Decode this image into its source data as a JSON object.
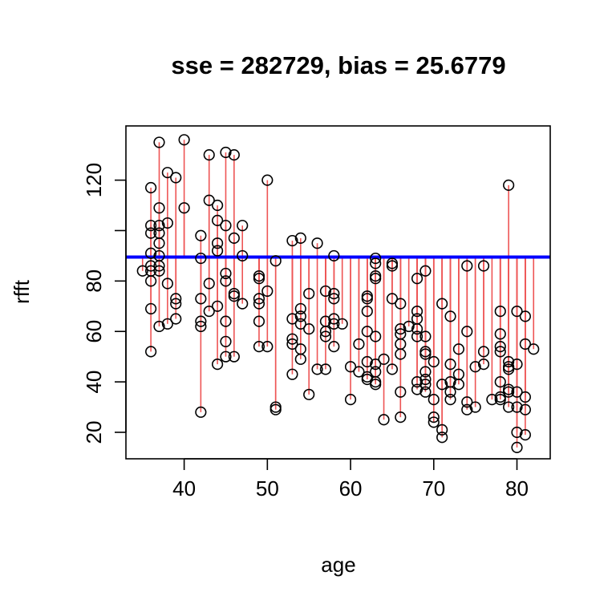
{
  "chart_data": {
    "type": "scatter",
    "title": "sse = 282729, bias = 25.6779",
    "xlabel": "age",
    "ylabel": "rfft",
    "xlim": [
      33.0,
      84.0
    ],
    "ylim": [
      9.5,
      141.5
    ],
    "x_ticks": [
      40,
      50,
      60,
      70,
      80
    ],
    "y_ticks": [
      20,
      40,
      60,
      80,
      100,
      120
    ],
    "y_tick_labels": [
      "20",
      "40",
      "60",
      "80",
      "",
      "120"
    ],
    "horizontal_line": {
      "y": 89.5,
      "color": "#0000ff"
    },
    "residual_color": "#ee5555",
    "points": [
      [
        35,
        84
      ],
      [
        36,
        117
      ],
      [
        36,
        102
      ],
      [
        36,
        99
      ],
      [
        36,
        91
      ],
      [
        36,
        86
      ],
      [
        36,
        84
      ],
      [
        36,
        80
      ],
      [
        36,
        69
      ],
      [
        36,
        52
      ],
      [
        37,
        135
      ],
      [
        37,
        109
      ],
      [
        37,
        102
      ],
      [
        37,
        99
      ],
      [
        37,
        95
      ],
      [
        37,
        90
      ],
      [
        37,
        86
      ],
      [
        37,
        84
      ],
      [
        37,
        62
      ],
      [
        38,
        123
      ],
      [
        38,
        103
      ],
      [
        38,
        79
      ],
      [
        38,
        63
      ],
      [
        39,
        121
      ],
      [
        39,
        73
      ],
      [
        39,
        71
      ],
      [
        39,
        65
      ],
      [
        40,
        136
      ],
      [
        40,
        109
      ],
      [
        42,
        98
      ],
      [
        42,
        89
      ],
      [
        42,
        73
      ],
      [
        42,
        64
      ],
      [
        42,
        62
      ],
      [
        42,
        28
      ],
      [
        43,
        130
      ],
      [
        43,
        112
      ],
      [
        43,
        79
      ],
      [
        43,
        68
      ],
      [
        44,
        110
      ],
      [
        44,
        104
      ],
      [
        44,
        95
      ],
      [
        44,
        92
      ],
      [
        44,
        70
      ],
      [
        44,
        47
      ],
      [
        45,
        131
      ],
      [
        45,
        102
      ],
      [
        45,
        83
      ],
      [
        45,
        80
      ],
      [
        45,
        64
      ],
      [
        45,
        56
      ],
      [
        45,
        50
      ],
      [
        46,
        130
      ],
      [
        46,
        97
      ],
      [
        46,
        75
      ],
      [
        46,
        74
      ],
      [
        46,
        50
      ],
      [
        47,
        102
      ],
      [
        47,
        90
      ],
      [
        47,
        71
      ],
      [
        49,
        82
      ],
      [
        49,
        81
      ],
      [
        49,
        73
      ],
      [
        49,
        71
      ],
      [
        49,
        64
      ],
      [
        49,
        54
      ],
      [
        50,
        120
      ],
      [
        50,
        76
      ],
      [
        50,
        54
      ],
      [
        51,
        88
      ],
      [
        51,
        30
      ],
      [
        51,
        29
      ],
      [
        53,
        96
      ],
      [
        53,
        65
      ],
      [
        53,
        57
      ],
      [
        53,
        55
      ],
      [
        53,
        43
      ],
      [
        54,
        97
      ],
      [
        54,
        69
      ],
      [
        54,
        66
      ],
      [
        54,
        63
      ],
      [
        54,
        53
      ],
      [
        54,
        49
      ],
      [
        55,
        75
      ],
      [
        55,
        61
      ],
      [
        55,
        35
      ],
      [
        56,
        95
      ],
      [
        56,
        45
      ],
      [
        57,
        76
      ],
      [
        57,
        64
      ],
      [
        57,
        60
      ],
      [
        57,
        58
      ],
      [
        57,
        45
      ],
      [
        58,
        90
      ],
      [
        58,
        75
      ],
      [
        58,
        73
      ],
      [
        58,
        65
      ],
      [
        58,
        63
      ],
      [
        58,
        54
      ],
      [
        59,
        63
      ],
      [
        60,
        46
      ],
      [
        60,
        33
      ],
      [
        61,
        55
      ],
      [
        61,
        44
      ],
      [
        62,
        74
      ],
      [
        62,
        73
      ],
      [
        62,
        68
      ],
      [
        62,
        60
      ],
      [
        62,
        48
      ],
      [
        62,
        42
      ],
      [
        62,
        41
      ],
      [
        63,
        89
      ],
      [
        63,
        87
      ],
      [
        63,
        82
      ],
      [
        63,
        81
      ],
      [
        63,
        58
      ],
      [
        63,
        47
      ],
      [
        63,
        44
      ],
      [
        63,
        40
      ],
      [
        63,
        39
      ],
      [
        64,
        49
      ],
      [
        64,
        25
      ],
      [
        65,
        87
      ],
      [
        65,
        86
      ],
      [
        65,
        73
      ],
      [
        65,
        45
      ],
      [
        66,
        71
      ],
      [
        66,
        61
      ],
      [
        66,
        59
      ],
      [
        66,
        55
      ],
      [
        66,
        51
      ],
      [
        66,
        36
      ],
      [
        66,
        26
      ],
      [
        67,
        62
      ],
      [
        68,
        81
      ],
      [
        68,
        68
      ],
      [
        68,
        65
      ],
      [
        68,
        61
      ],
      [
        68,
        58
      ],
      [
        68,
        40
      ],
      [
        68,
        37
      ],
      [
        69,
        84
      ],
      [
        69,
        58
      ],
      [
        69,
        52
      ],
      [
        69,
        51
      ],
      [
        69,
        44
      ],
      [
        69,
        41
      ],
      [
        69,
        39
      ],
      [
        69,
        36
      ],
      [
        70,
        48
      ],
      [
        70,
        33
      ],
      [
        70,
        26
      ],
      [
        70,
        24
      ],
      [
        71,
        71
      ],
      [
        71,
        39
      ],
      [
        71,
        21
      ],
      [
        71,
        18
      ],
      [
        72,
        66
      ],
      [
        72,
        47
      ],
      [
        72,
        40
      ],
      [
        72,
        36
      ],
      [
        72,
        33
      ],
      [
        73,
        53
      ],
      [
        73,
        43
      ],
      [
        73,
        39
      ],
      [
        74,
        86
      ],
      [
        74,
        60
      ],
      [
        74,
        32
      ],
      [
        74,
        29
      ],
      [
        75,
        46
      ],
      [
        75,
        30
      ],
      [
        76,
        86
      ],
      [
        76,
        52
      ],
      [
        76,
        47
      ],
      [
        77,
        33
      ],
      [
        78,
        68
      ],
      [
        78,
        59
      ],
      [
        78,
        54
      ],
      [
        78,
        52
      ],
      [
        78,
        40
      ],
      [
        78,
        34
      ],
      [
        78,
        33
      ],
      [
        79,
        118
      ],
      [
        79,
        48
      ],
      [
        79,
        46
      ],
      [
        79,
        45
      ],
      [
        79,
        37
      ],
      [
        79,
        36
      ],
      [
        79,
        30
      ],
      [
        80,
        68
      ],
      [
        80,
        47
      ],
      [
        80,
        36
      ],
      [
        80,
        30
      ],
      [
        80,
        20
      ],
      [
        80,
        14
      ],
      [
        81,
        66
      ],
      [
        81,
        55
      ],
      [
        81,
        34
      ],
      [
        81,
        29
      ],
      [
        81,
        19
      ],
      [
        82,
        53
      ]
    ]
  }
}
